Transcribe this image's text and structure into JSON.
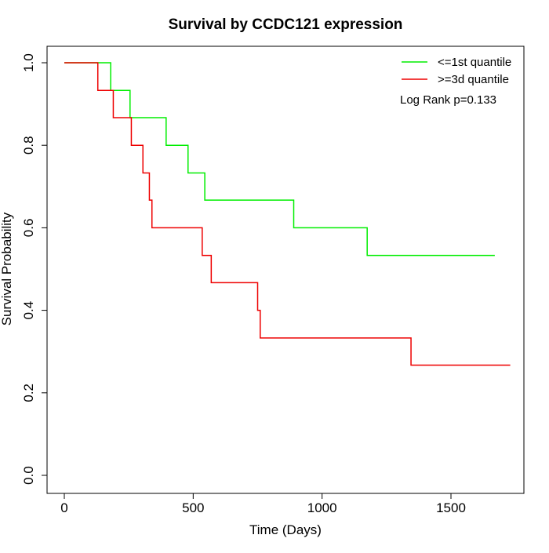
{
  "chart_data": {
    "type": "line",
    "title": "Survival by CCDC121 expression",
    "xlabel": "Time (Days)",
    "ylabel": "Survival Probability",
    "xlim": [
      0,
      1750
    ],
    "ylim": [
      0,
      1.0
    ],
    "x_ticks": [
      0,
      500,
      1000,
      1500
    ],
    "x_tick_labels": [
      "0",
      "500",
      "1000",
      "1500"
    ],
    "y_ticks": [
      0.0,
      0.2,
      0.4,
      0.6,
      0.8,
      1.0
    ],
    "y_tick_labels": [
      "0.0",
      "0.2",
      "0.4",
      "0.6",
      "0.8",
      "1.0"
    ],
    "grid": false,
    "legend_position": "top-right",
    "annotation": "Log Rank p=0.133",
    "series": [
      {
        "name": "<=1st quantile",
        "color": "#00ee00",
        "step": true,
        "x": [
          0,
          180,
          255,
          395,
          480,
          545,
          890,
          1175,
          1670
        ],
        "y": [
          1.0,
          0.933,
          0.867,
          0.8,
          0.733,
          0.667,
          0.6,
          0.533,
          0.533
        ]
      },
      {
        "name": ">=3d quantile",
        "color": "#ee0000",
        "step": true,
        "x": [
          0,
          130,
          190,
          260,
          305,
          330,
          340,
          535,
          570,
          750,
          760,
          1345,
          1730
        ],
        "y": [
          1.0,
          0.933,
          0.867,
          0.8,
          0.733,
          0.667,
          0.6,
          0.533,
          0.467,
          0.4,
          0.333,
          0.267,
          0.267
        ]
      }
    ]
  }
}
